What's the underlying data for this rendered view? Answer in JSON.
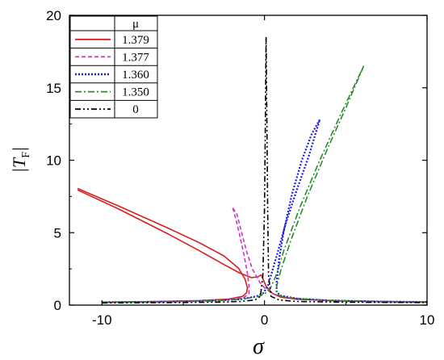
{
  "chart_data": {
    "type": "line",
    "title": "",
    "xlabel": "σ",
    "ylabel_main": "|T",
    "ylabel_sub": "F",
    "ylabel_close": "|",
    "xlim": [
      -12,
      10
    ],
    "ylim": [
      0,
      20
    ],
    "x_ticks": [
      -10,
      0,
      10
    ],
    "y_ticks": [
      0,
      5,
      10,
      15,
      20
    ],
    "grid": false,
    "legend": {
      "position": "top-left",
      "header": "μ"
    },
    "series": [
      {
        "name": "1.379",
        "color": "#d62020",
        "dash": "solid",
        "branches": [
          [
            [
              -11.5,
              8.05
            ],
            [
              -9,
              6.85
            ],
            [
              -6,
              5.35
            ],
            [
              -4,
              4.3
            ],
            [
              -2.5,
              3.4
            ],
            [
              -1.6,
              2.55
            ],
            [
              -1.2,
              1.8
            ],
            [
              -1.05,
              1.2
            ],
            [
              -1.1,
              0.85
            ],
            [
              -1.35,
              0.6
            ],
            [
              -2.2,
              0.42
            ],
            [
              -4,
              0.31
            ],
            [
              -7,
              0.24
            ],
            [
              -10,
              0.2
            ]
          ],
          [
            [
              -11.5,
              7.95
            ],
            [
              -9,
              6.65
            ],
            [
              -6,
              4.95
            ],
            [
              -4,
              3.75
            ],
            [
              -2.5,
              2.8
            ],
            [
              -1.5,
              2.2
            ],
            [
              -0.8,
              1.9
            ],
            [
              -0.4,
              1.95
            ],
            [
              -0.2,
              2.1
            ]
          ],
          [
            [
              -0.2,
              2.1
            ],
            [
              0.1,
              1.3
            ],
            [
              0.5,
              0.8
            ],
            [
              1,
              0.55
            ],
            [
              2,
              0.4
            ],
            [
              4,
              0.3
            ],
            [
              7,
              0.24
            ],
            [
              10,
              0.2
            ]
          ]
        ]
      },
      {
        "name": "1.377",
        "color": "#cc33cc",
        "dash": "5,3",
        "branches": [
          [
            [
              -1.95,
              6.7
            ],
            [
              -1.75,
              5.9
            ],
            [
              -1.5,
              4.7
            ],
            [
              -1.25,
              3.4
            ],
            [
              -1.05,
              2.2
            ],
            [
              -0.95,
              1.3
            ],
            [
              -0.95,
              0.8
            ],
            [
              -1.3,
              0.5
            ],
            [
              -2.5,
              0.35
            ],
            [
              -5,
              0.26
            ],
            [
              -8,
              0.22
            ],
            [
              -10,
              0.2
            ]
          ],
          [
            [
              -1.95,
              6.7
            ],
            [
              -1.7,
              6.3
            ],
            [
              -1.4,
              5.0
            ],
            [
              -1.1,
              3.7
            ],
            [
              -0.75,
              2.5
            ],
            [
              -0.3,
              1.6
            ],
            [
              0,
              1.2
            ],
            [
              0.5,
              0.8
            ],
            [
              1.2,
              0.55
            ],
            [
              2.5,
              0.4
            ],
            [
              5,
              0.3
            ],
            [
              8,
              0.24
            ],
            [
              10,
              0.22
            ]
          ]
        ]
      },
      {
        "name": "1.360",
        "color": "#1a1aee",
        "dash": "2,2",
        "branches": [
          [
            [
              -10,
              0.2
            ],
            [
              -6,
              0.24
            ],
            [
              -3,
              0.3
            ],
            [
              -1.5,
              0.4
            ],
            [
              -0.5,
              0.6
            ],
            [
              -0.1,
              0.8
            ],
            [
              0.2,
              1.3
            ],
            [
              0.7,
              3.2
            ],
            [
              1.3,
              5.6
            ],
            [
              2.0,
              8.0
            ],
            [
              2.7,
              10.2
            ],
            [
              3.4,
              12.8
            ]
          ],
          [
            [
              3.4,
              12.8
            ],
            [
              2.9,
              11.8
            ],
            [
              2.3,
              10.0
            ],
            [
              1.7,
              7.7
            ],
            [
              1.2,
              5.2
            ],
            [
              0.9,
              3.2
            ],
            [
              0.75,
              1.6
            ],
            [
              0.75,
              0.9
            ],
            [
              1.0,
              0.65
            ],
            [
              2.0,
              0.45
            ],
            [
              4,
              0.32
            ],
            [
              7,
              0.25
            ],
            [
              10,
              0.22
            ]
          ]
        ]
      },
      {
        "name": "1.350",
        "color": "#2a8a2a",
        "dash": "8,3,2,3",
        "branches": [
          [
            [
              -10,
              0.2
            ],
            [
              -6,
              0.24
            ],
            [
              -3,
              0.3
            ],
            [
              -1.5,
              0.4
            ],
            [
              -0.3,
              0.6
            ],
            [
              0.3,
              1.0
            ],
            [
              0.7,
              2.0
            ],
            [
              1.2,
              3.8
            ],
            [
              2.2,
              6.8
            ],
            [
              3.4,
              10.0
            ],
            [
              4.7,
              13.2
            ],
            [
              6.1,
              16.5
            ]
          ],
          [
            [
              6.1,
              16.5
            ],
            [
              5.0,
              13.6
            ],
            [
              3.8,
              10.6
            ],
            [
              2.6,
              7.4
            ],
            [
              1.6,
              4.4
            ],
            [
              1.0,
              2.4
            ],
            [
              0.75,
              1.3
            ],
            [
              0.75,
              0.8
            ],
            [
              1.0,
              0.6
            ],
            [
              2.0,
              0.45
            ],
            [
              4,
              0.32
            ],
            [
              7,
              0.25
            ],
            [
              10,
              0.22
            ]
          ]
        ]
      },
      {
        "name": "0",
        "color": "#000000",
        "dash": "7,3,2,3,2,3",
        "branches": [
          [
            [
              -10,
              0.15
            ],
            [
              -6,
              0.17
            ],
            [
              -3,
              0.2
            ],
            [
              -1.5,
              0.25
            ],
            [
              -0.6,
              0.35
            ],
            [
              -0.25,
              0.6
            ],
            [
              -0.1,
              2.0
            ],
            [
              0,
              6.5
            ],
            [
              0.05,
              12.0
            ],
            [
              0.1,
              18.5
            ]
          ],
          [
            [
              0.1,
              18.5
            ],
            [
              0.15,
              12.0
            ],
            [
              0.2,
              6.0
            ],
            [
              0.25,
              2.0
            ],
            [
              0.4,
              0.6
            ],
            [
              0.9,
              0.35
            ],
            [
              2,
              0.25
            ],
            [
              5,
              0.2
            ],
            [
              10,
              0.17
            ]
          ]
        ]
      }
    ]
  }
}
